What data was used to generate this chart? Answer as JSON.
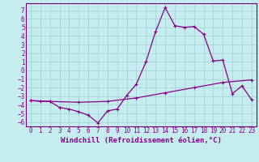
{
  "xlabel": "Windchill (Refroidissement éolien,°C)",
  "background_color": "#c5ecee",
  "grid_color": "#a0d0d4",
  "line_color": "#880088",
  "spine_color": "#7a007a",
  "xlim": [
    -0.5,
    23.5
  ],
  "ylim": [
    -6.5,
    7.8
  ],
  "yticks": [
    -6,
    -5,
    -4,
    -3,
    -2,
    -1,
    0,
    1,
    2,
    3,
    4,
    5,
    6,
    7
  ],
  "xticks": [
    0,
    1,
    2,
    3,
    4,
    5,
    6,
    7,
    8,
    9,
    10,
    11,
    12,
    13,
    14,
    15,
    16,
    17,
    18,
    19,
    20,
    21,
    22,
    23
  ],
  "temp_data": [
    [
      0,
      -3.5
    ],
    [
      1,
      -3.6
    ],
    [
      2,
      -3.6
    ],
    [
      3,
      -4.3
    ],
    [
      4,
      -4.5
    ],
    [
      5,
      -4.8
    ],
    [
      6,
      -5.2
    ],
    [
      7,
      -6.1
    ],
    [
      8,
      -4.7
    ],
    [
      9,
      -4.5
    ],
    [
      10,
      -2.9
    ],
    [
      11,
      -1.6
    ],
    [
      12,
      1.0
    ],
    [
      13,
      4.5
    ],
    [
      14,
      7.3
    ],
    [
      15,
      5.2
    ],
    [
      16,
      5.0
    ],
    [
      17,
      5.1
    ],
    [
      18,
      4.2
    ],
    [
      19,
      1.1
    ],
    [
      20,
      1.2
    ],
    [
      21,
      -2.7
    ],
    [
      22,
      -1.8
    ],
    [
      23,
      -3.4
    ]
  ],
  "flat_data": [
    [
      0,
      -3.5
    ],
    [
      2,
      -3.6
    ],
    [
      5,
      -3.7
    ],
    [
      8,
      -3.6
    ],
    [
      11,
      -3.2
    ],
    [
      14,
      -2.6
    ],
    [
      17,
      -2.0
    ],
    [
      20,
      -1.4
    ],
    [
      23,
      -1.1
    ]
  ],
  "tick_fontsize": 5.5,
  "xlabel_fontsize": 6.5,
  "linewidth": 0.9,
  "markersize": 3.0,
  "markeredgewidth": 0.8
}
